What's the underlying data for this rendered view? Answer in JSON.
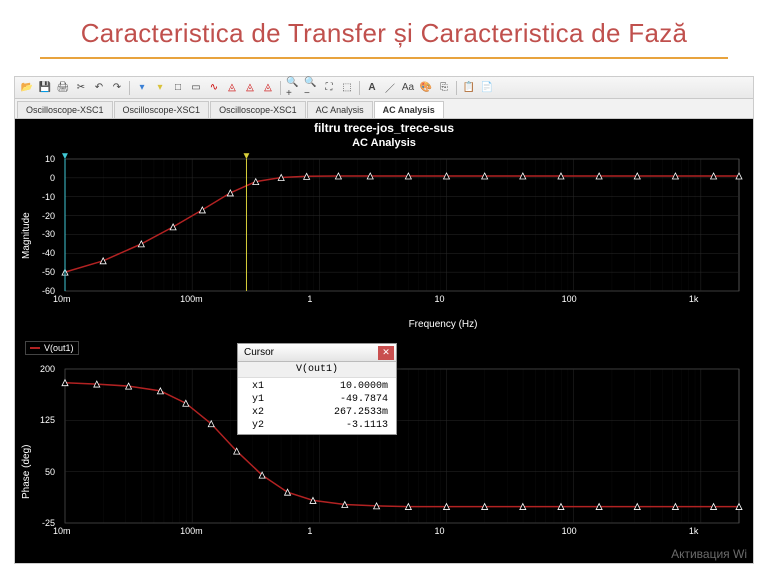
{
  "slide": {
    "title": "Caracteristica de Transfer și Caracteristica de Fază",
    "title_color": "#c0504d",
    "underline_color": "#e8a33d"
  },
  "toolbar": {
    "icons": [
      {
        "name": "open-icon",
        "glyph": "📂"
      },
      {
        "name": "save-icon",
        "glyph": "💾"
      },
      {
        "name": "print-icon",
        "glyph": "🖨"
      },
      {
        "name": "cut-icon",
        "glyph": "✂"
      },
      {
        "name": "undo-icon",
        "glyph": "↶"
      },
      {
        "name": "redo-icon",
        "glyph": "↷"
      },
      {
        "name": "sep"
      },
      {
        "name": "cursor-blue-icon",
        "glyph": "▾",
        "color": "#3a7fd5"
      },
      {
        "name": "cursor-yellow-icon",
        "glyph": "▾",
        "color": "#d9c23a"
      },
      {
        "name": "show-icon",
        "glyph": "□"
      },
      {
        "name": "overlay-icon",
        "glyph": "▭"
      },
      {
        "name": "wave-icon",
        "glyph": "∿",
        "color": "#c00"
      },
      {
        "name": "marker-red1-icon",
        "glyph": "◬",
        "color": "#c00"
      },
      {
        "name": "marker-red2-icon",
        "glyph": "◬",
        "color": "#c00"
      },
      {
        "name": "marker-red3-icon",
        "glyph": "◬",
        "color": "#c00"
      },
      {
        "name": "sep"
      },
      {
        "name": "zoom-in-icon",
        "glyph": "🔍+"
      },
      {
        "name": "zoom-out-icon",
        "glyph": "🔍−"
      },
      {
        "name": "zoom-fit-icon",
        "glyph": "⛶"
      },
      {
        "name": "zoom-area-icon",
        "glyph": "⬚"
      },
      {
        "name": "sep"
      },
      {
        "name": "text-a-icon",
        "glyph": "A",
        "bold": true
      },
      {
        "name": "text-line-icon",
        "glyph": "／"
      },
      {
        "name": "text-aa-icon",
        "glyph": "Aa"
      },
      {
        "name": "palette-icon",
        "glyph": "🎨"
      },
      {
        "name": "export-icon",
        "glyph": "⎘"
      },
      {
        "name": "sep"
      },
      {
        "name": "copy-icon",
        "glyph": "📋"
      },
      {
        "name": "paste-icon",
        "glyph": "📄"
      }
    ]
  },
  "tabs": {
    "items": [
      {
        "label": "Oscilloscope-XSC1",
        "active": false
      },
      {
        "label": "Oscilloscope-XSC1",
        "active": false
      },
      {
        "label": "Oscilloscope-XSC1",
        "active": false
      },
      {
        "label": "AC Analysis",
        "active": false
      },
      {
        "label": "AC Analysis",
        "active": true
      }
    ]
  },
  "plot": {
    "background": "#000000",
    "title": "filtru trece-jos_trece-sus",
    "subtitle": "AC Analysis",
    "xlabel": "Frequency (Hz)",
    "xticks": [
      {
        "label": "10m",
        "logv": -2
      },
      {
        "label": "100m",
        "logv": -1
      },
      {
        "label": "1",
        "logv": 0
      },
      {
        "label": "10",
        "logv": 1
      },
      {
        "label": "100",
        "logv": 2
      },
      {
        "label": "1k",
        "logv": 3
      }
    ],
    "xlim_log": [
      -2,
      3.3
    ],
    "series_color": "#b22222",
    "marker_fill": "#ffffff",
    "grid_color": "#2a2a2a",
    "axis_color": "#888888",
    "cursor1_color": "#3fc9d6",
    "cursor2_color": "#d9d03a",
    "cursor1_x_log": -2,
    "cursor2_x_log": -0.573,
    "magnitude": {
      "ylabel": "Magnitude",
      "ylim": [
        -60,
        10
      ],
      "yticks": [
        {
          "v": 10,
          "l": "10"
        },
        {
          "v": 0,
          "l": "0"
        },
        {
          "v": -10,
          "l": "-10"
        },
        {
          "v": -20,
          "l": "-20"
        },
        {
          "v": -30,
          "l": "-30"
        },
        {
          "v": -40,
          "l": "-40"
        },
        {
          "v": -50,
          "l": "-50"
        },
        {
          "v": -60,
          "l": "-60"
        }
      ],
      "points": [
        {
          "x": -2,
          "y": -50
        },
        {
          "x": -1.7,
          "y": -44
        },
        {
          "x": -1.4,
          "y": -35
        },
        {
          "x": -1.15,
          "y": -26
        },
        {
          "x": -0.92,
          "y": -17
        },
        {
          "x": -0.7,
          "y": -8
        },
        {
          "x": -0.5,
          "y": -2
        },
        {
          "x": -0.3,
          "y": 0.2
        },
        {
          "x": -0.1,
          "y": 0.8
        },
        {
          "x": 0.15,
          "y": 1
        },
        {
          "x": 0.4,
          "y": 1
        },
        {
          "x": 0.7,
          "y": 1
        },
        {
          "x": 1,
          "y": 1
        },
        {
          "x": 1.3,
          "y": 1
        },
        {
          "x": 1.6,
          "y": 1
        },
        {
          "x": 1.9,
          "y": 1
        },
        {
          "x": 2.2,
          "y": 1
        },
        {
          "x": 2.5,
          "y": 1
        },
        {
          "x": 2.8,
          "y": 1
        },
        {
          "x": 3.1,
          "y": 1
        },
        {
          "x": 3.3,
          "y": 1
        }
      ]
    },
    "phase": {
      "ylabel": "Phase (deg)",
      "ylim": [
        -25,
        200
      ],
      "yticks": [
        {
          "v": 200,
          "l": "200"
        },
        {
          "v": 125,
          "l": "125"
        },
        {
          "v": 50,
          "l": "50"
        },
        {
          "v": -25,
          "l": "-25"
        }
      ],
      "points": [
        {
          "x": -2,
          "y": 180
        },
        {
          "x": -1.75,
          "y": 178
        },
        {
          "x": -1.5,
          "y": 175
        },
        {
          "x": -1.25,
          "y": 168
        },
        {
          "x": -1.05,
          "y": 150
        },
        {
          "x": -0.85,
          "y": 120
        },
        {
          "x": -0.65,
          "y": 80
        },
        {
          "x": -0.45,
          "y": 45
        },
        {
          "x": -0.25,
          "y": 20
        },
        {
          "x": -0.05,
          "y": 8
        },
        {
          "x": 0.2,
          "y": 2
        },
        {
          "x": 0.45,
          "y": 0
        },
        {
          "x": 0.7,
          "y": -1
        },
        {
          "x": 1,
          "y": -1
        },
        {
          "x": 1.3,
          "y": -1
        },
        {
          "x": 1.6,
          "y": -1
        },
        {
          "x": 1.9,
          "y": -1
        },
        {
          "x": 2.2,
          "y": -1
        },
        {
          "x": 2.5,
          "y": -1
        },
        {
          "x": 2.8,
          "y": -1
        },
        {
          "x": 3.1,
          "y": -1
        },
        {
          "x": 3.3,
          "y": -1
        }
      ]
    },
    "legend": {
      "label": "V(out1)",
      "color": "#b22222"
    }
  },
  "cursor_window": {
    "title": "Cursor",
    "column_header": "V(out1)",
    "rows": [
      {
        "k": "x1",
        "v": "10.0000m"
      },
      {
        "k": "y1",
        "v": "-49.7874"
      },
      {
        "k": "x2",
        "v": "267.2533m"
      },
      {
        "k": "y2",
        "v": "-3.1113"
      }
    ],
    "scroll_hint": "^"
  },
  "watermark": "Активация Wi"
}
